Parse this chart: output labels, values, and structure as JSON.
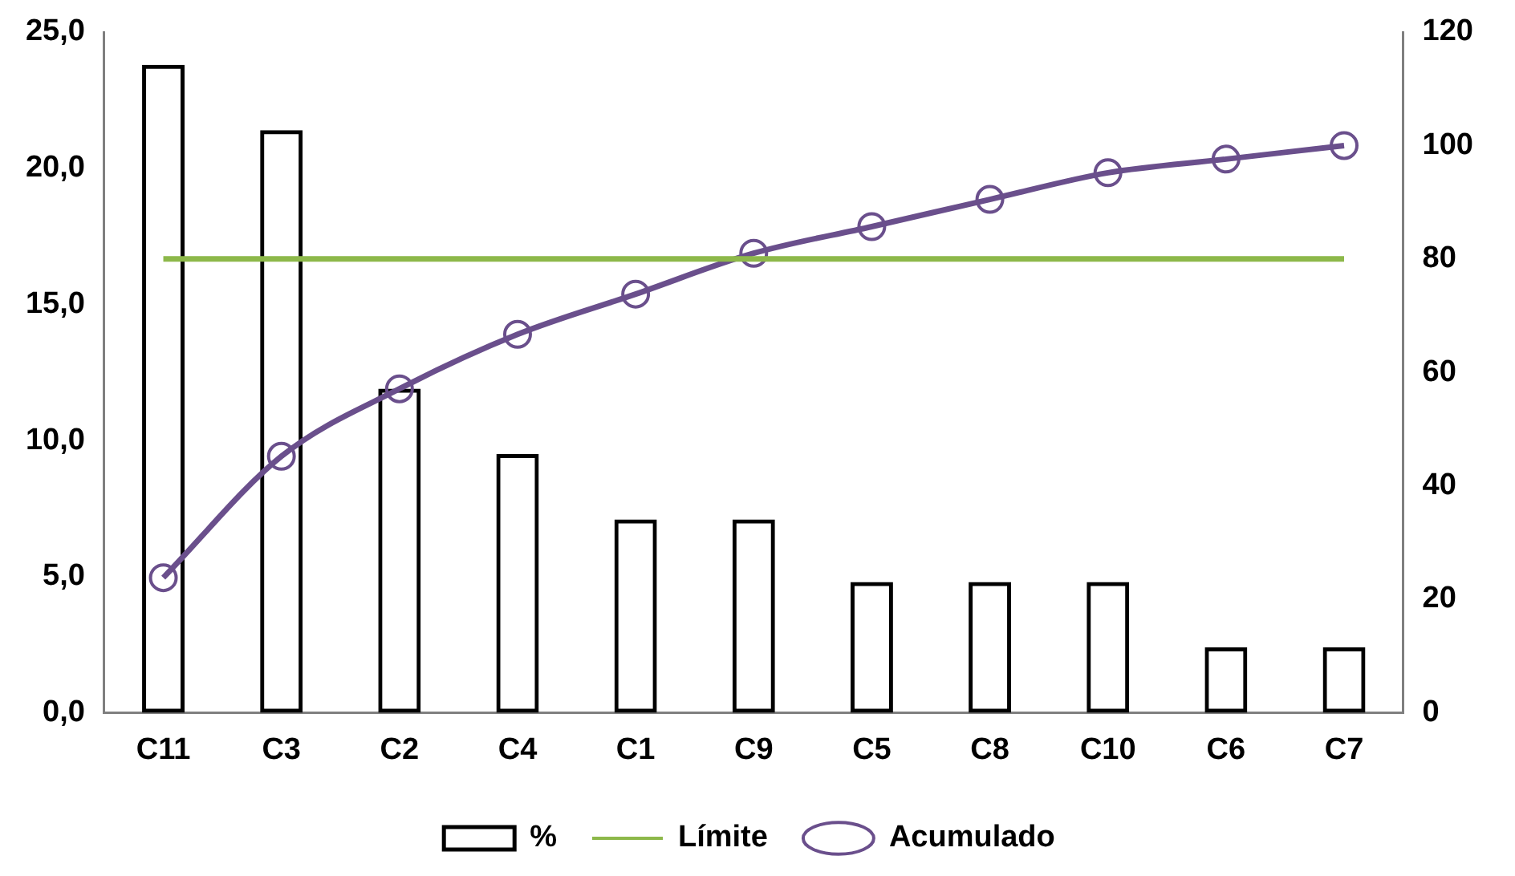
{
  "chart_data": {
    "type": "bar",
    "categories": [
      "C11",
      "C3",
      "C2",
      "C4",
      "C1",
      "C9",
      "C5",
      "C8",
      "C10",
      "C6",
      "C7"
    ],
    "series": [
      {
        "name": "%",
        "color": "#000000",
        "values": [
          23.8,
          21.4,
          11.9,
          9.5,
          7.1,
          7.1,
          4.8,
          4.8,
          4.8,
          2.4,
          2.4
        ]
      },
      {
        "name": "Límite",
        "type": "line",
        "axis": "y2",
        "color": "#8db84a",
        "marker": "none",
        "values": [
          80,
          80,
          80,
          80,
          80,
          80,
          80,
          80,
          80,
          80,
          80
        ]
      },
      {
        "name": "Acumulado",
        "type": "line",
        "axis": "y2",
        "color": "#6a4f8c",
        "marker": "circle",
        "values": [
          23.8,
          45.2,
          57.1,
          66.7,
          73.8,
          81.0,
          85.7,
          90.5,
          95.2,
          97.6,
          100
        ]
      }
    ],
    "ylim": [
      0,
      25
    ],
    "yticks": [
      {
        "value": 0,
        "label": "0,0"
      },
      {
        "value": 5,
        "label": "5,0"
      },
      {
        "value": 10,
        "label": "10,0"
      },
      {
        "value": 15,
        "label": "15,0"
      },
      {
        "value": 20,
        "label": "20,0"
      },
      {
        "value": 25,
        "label": "25,0"
      }
    ],
    "y2lim": [
      0,
      120
    ],
    "y2ticks": [
      0,
      20,
      40,
      60,
      80,
      100,
      120
    ],
    "grid": false,
    "legend": "bottom"
  }
}
